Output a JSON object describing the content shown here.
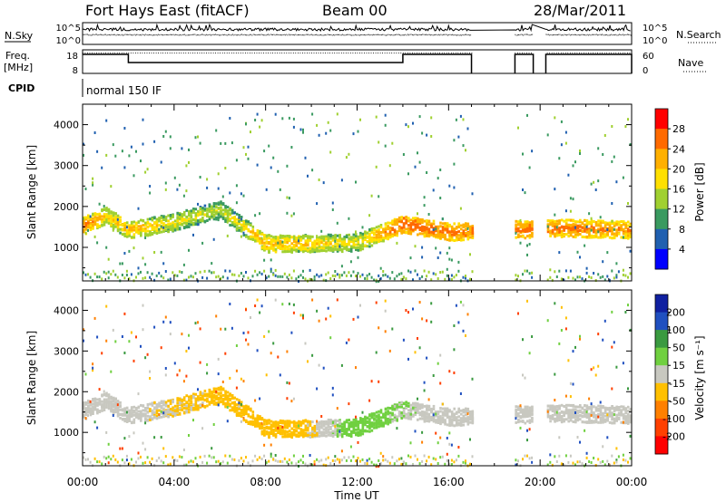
{
  "header": {
    "station": "Fort Hays East (fitACF)",
    "beam": "Beam 00",
    "date": "28/Mar/2011"
  },
  "noise_panel": {
    "left_label": "N.Sky",
    "left_ticks": [
      "10^5",
      "10^0"
    ],
    "right_ticks": [
      "10^5",
      "10^0"
    ],
    "right_label": "N.Search"
  },
  "freq_panel": {
    "left_label_1": "Freq.",
    "left_label_2": "[MHz]",
    "left_ticks": [
      "18",
      "8"
    ],
    "right_ticks": [
      "60",
      "0"
    ],
    "right_label": "Nave"
  },
  "cpid": {
    "label": "CPID",
    "value": "normal 150 IF"
  },
  "power_panel": {
    "ylabel": "Slant Range [km]",
    "yticks": [
      "4000",
      "3000",
      "2000",
      "1000"
    ],
    "colorbar_label": "Power [dB]",
    "colorbar_ticks": [
      "28",
      "24",
      "20",
      "16",
      "12",
      "8",
      "4"
    ],
    "colorbar_colors": [
      "#ff0000",
      "#ff6a00",
      "#ffb000",
      "#ffe000",
      "#a0d030",
      "#3a9a60",
      "#2060b0",
      "#0000ff"
    ]
  },
  "velocity_panel": {
    "ylabel": "Slant Range [km]",
    "yticks": [
      "4000",
      "3000",
      "2000",
      "1000"
    ],
    "colorbar_label": "Velocity [m s⁻¹]",
    "colorbar_ticks": [
      "200",
      "100",
      "50",
      "15",
      "-15",
      "-50",
      "-100",
      "-200"
    ],
    "colorbar_colors": [
      "#1020a0",
      "#2050c0",
      "#3a9a40",
      "#70d040",
      "#c8c8c0",
      "#ffc000",
      "#ff8000",
      "#ff4000",
      "#ff0000"
    ]
  },
  "x_axis": {
    "ticks": [
      "00:00",
      "04:00",
      "08:00",
      "12:00",
      "16:00",
      "20:00",
      "00:00"
    ],
    "label": "Time UT"
  },
  "chart_data": [
    {
      "type": "heatmap",
      "title": "Fort Hays East (fitACF) Beam 00 28/Mar/2011",
      "quantity": "Power",
      "xlabel": "Time UT",
      "ylabel": "Slant Range [km]",
      "xlim_hours": [
        0,
        24
      ],
      "ylim_km": [
        180,
        4500
      ],
      "clim_dB": [
        0,
        30
      ],
      "data_gaps_hours": [
        [
          17.0,
          18.9
        ],
        [
          19.7,
          20.25
        ]
      ],
      "scatter_band": [
        {
          "t": 0.0,
          "range": 1550,
          "power": 24
        },
        {
          "t": 1.0,
          "range": 1800,
          "power": 18
        },
        {
          "t": 2.0,
          "range": 1450,
          "power": 20
        },
        {
          "t": 4.0,
          "range": 1650,
          "power": 16
        },
        {
          "t": 6.0,
          "range": 1950,
          "power": 14
        },
        {
          "t": 8.0,
          "range": 1120,
          "power": 20
        },
        {
          "t": 10.0,
          "range": 1120,
          "power": 18
        },
        {
          "t": 12.0,
          "range": 1150,
          "power": 16
        },
        {
          "t": 14.0,
          "range": 1600,
          "power": 26
        },
        {
          "t": 16.0,
          "range": 1400,
          "power": 24
        },
        {
          "t": 21.0,
          "range": 1500,
          "power": 24
        },
        {
          "t": 24.0,
          "range": 1450,
          "power": 22
        }
      ]
    },
    {
      "type": "heatmap",
      "quantity": "Velocity",
      "xlabel": "Time UT",
      "ylabel": "Slant Range [km]",
      "xlim_hours": [
        0,
        24
      ],
      "ylim_km": [
        180,
        4500
      ],
      "clim_m_s": [
        -200,
        200
      ],
      "dominant_value_range_m_s": [
        -15,
        15
      ],
      "scatter_band": [
        {
          "t": 0.0,
          "range": 1600,
          "velocity": 0
        },
        {
          "t": 2.0,
          "range": 1500,
          "velocity": 0
        },
        {
          "t": 6.0,
          "range": 1900,
          "velocity": -30
        },
        {
          "t": 9.0,
          "range": 1150,
          "velocity": -40
        },
        {
          "t": 12.0,
          "range": 1700,
          "velocity": 40
        },
        {
          "t": 15.0,
          "range": 1500,
          "velocity": 0
        },
        {
          "t": 22.0,
          "range": 1500,
          "velocity": 0
        }
      ]
    },
    {
      "type": "line",
      "quantity": "Noise / Frequency / Nave",
      "x_hours": [
        0,
        2,
        14,
        17
      ],
      "freq_MHz": [
        18,
        13,
        13,
        18
      ]
    }
  ]
}
